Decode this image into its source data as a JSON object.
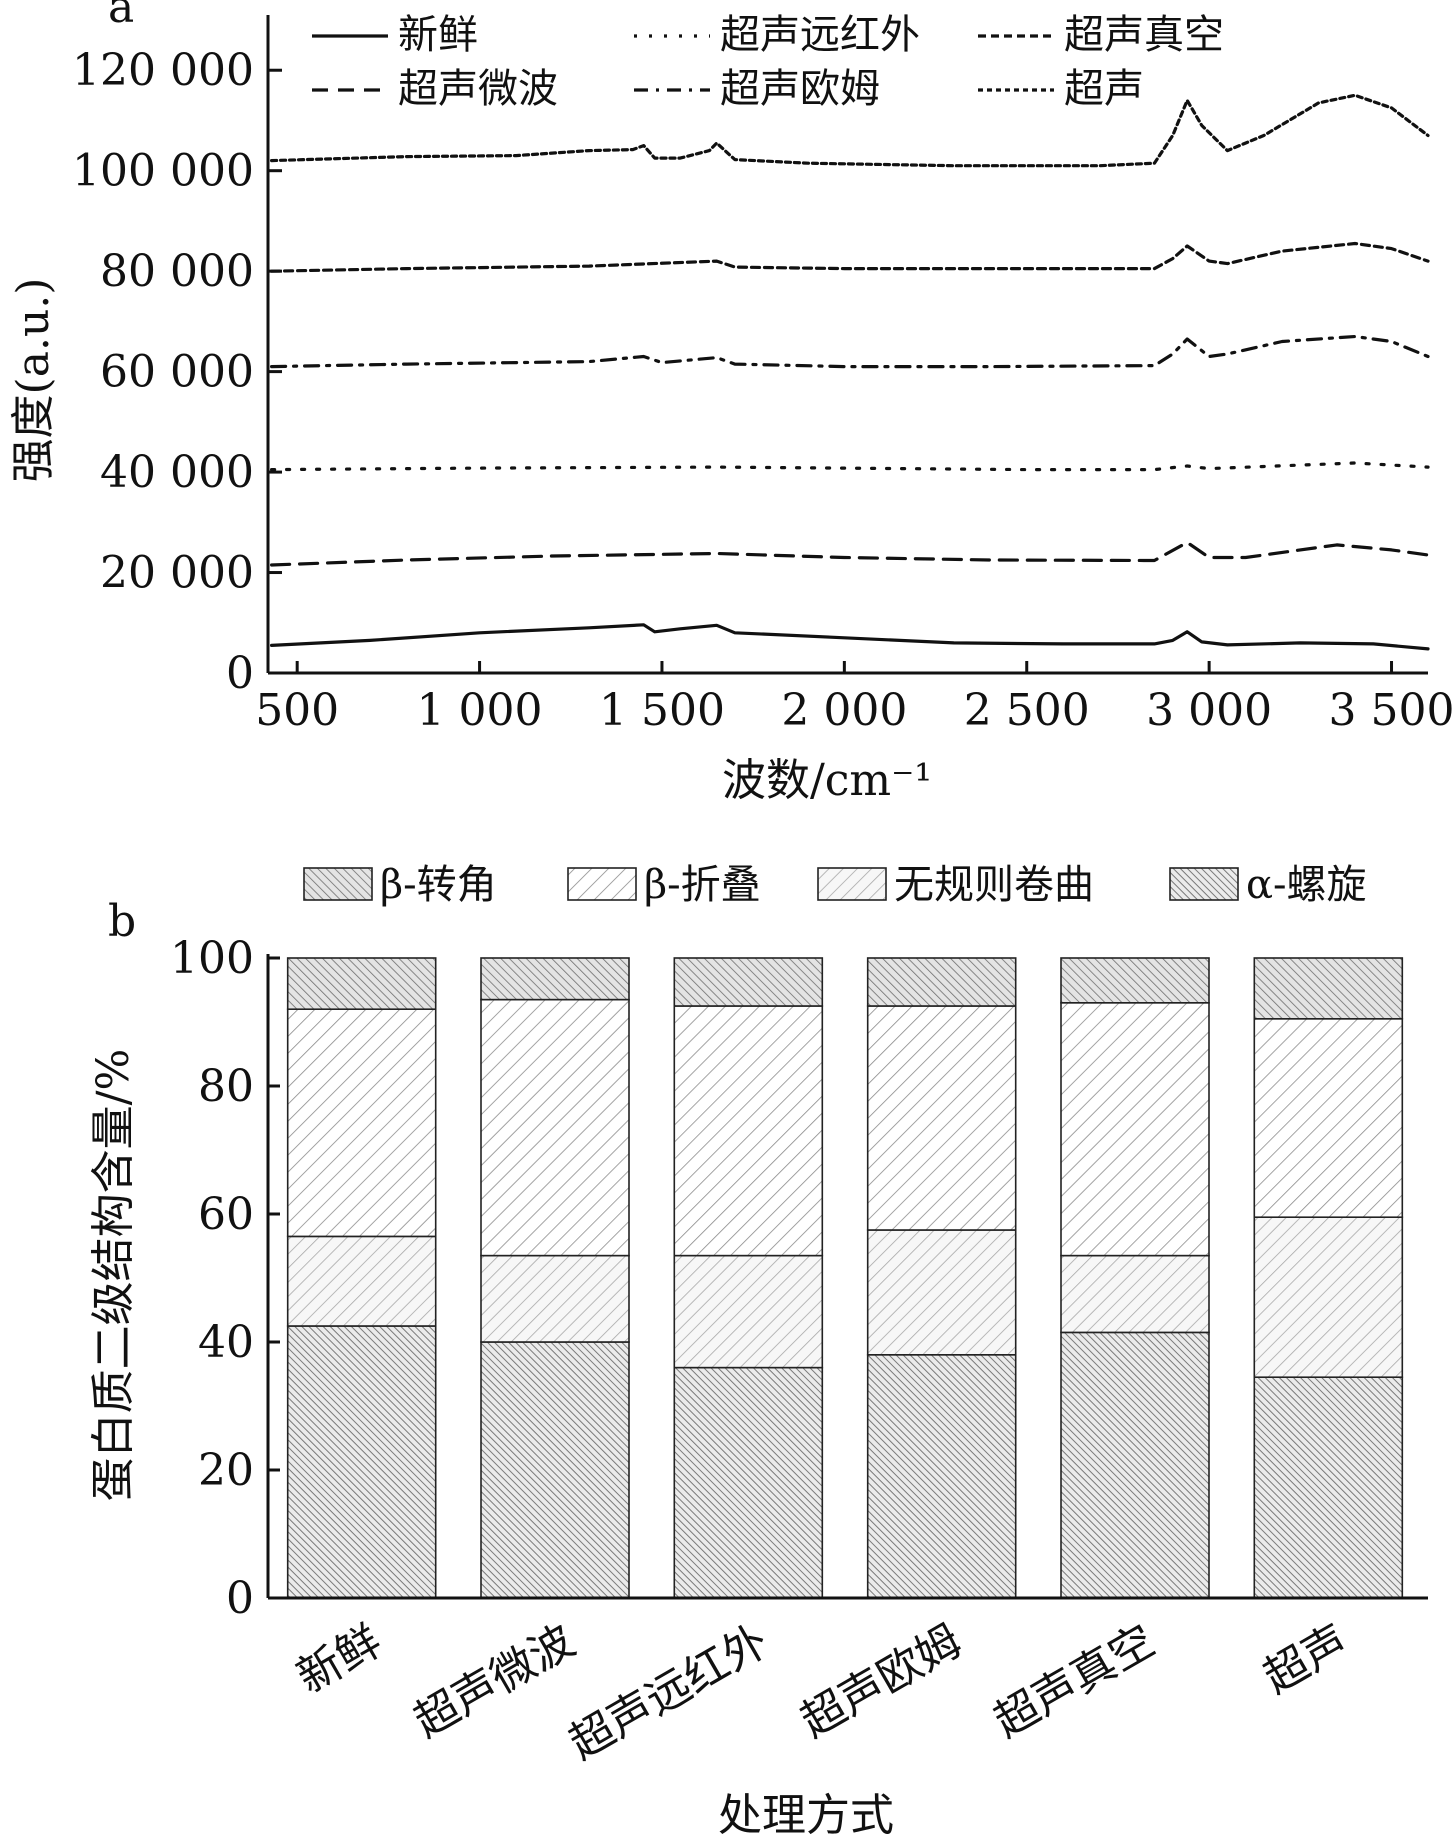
{
  "chart_data": [
    {
      "panel": "a",
      "type": "line",
      "xlabel": "波数/cm⁻¹",
      "ylabel": "强度(a.u.)",
      "xlim": [
        420,
        3600
      ],
      "ylim": [
        0,
        130000
      ],
      "xticks": [
        500,
        1000,
        1500,
        2000,
        2500,
        3000,
        3500
      ],
      "xtick_labels": [
        "500",
        "1 000",
        "1 500",
        "2 000",
        "2 500",
        "3 000",
        "3 500"
      ],
      "yticks": [
        0,
        20000,
        40000,
        60000,
        80000,
        100000,
        120000
      ],
      "ytick_labels": [
        "0",
        "20 000",
        "40 000",
        "60 000",
        "80 000",
        "100 000",
        "120 000"
      ],
      "legend_position": "top",
      "series": [
        {
          "name": "新鲜",
          "style": "solid",
          "points": [
            [
              430,
              5500
            ],
            [
              700,
              6500
            ],
            [
              1000,
              8000
            ],
            [
              1300,
              9000
            ],
            [
              1450,
              9600
            ],
            [
              1480,
              8200
            ],
            [
              1550,
              8800
            ],
            [
              1650,
              9500
            ],
            [
              1700,
              8000
            ],
            [
              2000,
              7000
            ],
            [
              2300,
              6000
            ],
            [
              2600,
              5800
            ],
            [
              2850,
              5800
            ],
            [
              2900,
              6500
            ],
            [
              2940,
              8200
            ],
            [
              2980,
              6200
            ],
            [
              3050,
              5600
            ],
            [
              3250,
              6000
            ],
            [
              3450,
              5800
            ],
            [
              3600,
              4800
            ]
          ]
        },
        {
          "name": "超声微波",
          "style": "dashed",
          "points": [
            [
              430,
              21500
            ],
            [
              800,
              22500
            ],
            [
              1200,
              23300
            ],
            [
              1650,
              23800
            ],
            [
              2000,
              23000
            ],
            [
              2400,
              22500
            ],
            [
              2850,
              22400
            ],
            [
              2940,
              26000
            ],
            [
              3000,
              23000
            ],
            [
              3100,
              23000
            ],
            [
              3350,
              25500
            ],
            [
              3500,
              24500
            ],
            [
              3600,
              23500
            ]
          ]
        },
        {
          "name": "超声远红外",
          "style": "dotted",
          "points": [
            [
              430,
              40500
            ],
            [
              1000,
              40800
            ],
            [
              1650,
              41000
            ],
            [
              2500,
              40500
            ],
            [
              2850,
              40500
            ],
            [
              2940,
              41200
            ],
            [
              3000,
              40700
            ],
            [
              3400,
              41800
            ],
            [
              3600,
              41000
            ]
          ]
        },
        {
          "name": "超声欧姆",
          "style": "dashdot",
          "points": [
            [
              430,
              61000
            ],
            [
              800,
              61500
            ],
            [
              1300,
              62000
            ],
            [
              1450,
              63000
            ],
            [
              1500,
              61800
            ],
            [
              1650,
              62800
            ],
            [
              1700,
              61500
            ],
            [
              2000,
              61000
            ],
            [
              2400,
              61000
            ],
            [
              2850,
              61200
            ],
            [
              2900,
              63500
            ],
            [
              2940,
              66500
            ],
            [
              3000,
              63000
            ],
            [
              3050,
              63500
            ],
            [
              3200,
              66000
            ],
            [
              3400,
              67000
            ],
            [
              3500,
              66000
            ],
            [
              3600,
              63000
            ]
          ]
        },
        {
          "name": "超声真空",
          "style": "shortdash",
          "points": [
            [
              430,
              80000
            ],
            [
              800,
              80500
            ],
            [
              1300,
              81000
            ],
            [
              1650,
              82000
            ],
            [
              1700,
              80800
            ],
            [
              2000,
              80500
            ],
            [
              2500,
              80500
            ],
            [
              2850,
              80500
            ],
            [
              2900,
              82500
            ],
            [
              2940,
              85000
            ],
            [
              3000,
              82000
            ],
            [
              3050,
              81500
            ],
            [
              3200,
              84000
            ],
            [
              3400,
              85500
            ],
            [
              3500,
              84500
            ],
            [
              3600,
              82000
            ]
          ]
        },
        {
          "name": "超声",
          "style": "finedash",
          "points": [
            [
              430,
              102000
            ],
            [
              800,
              102800
            ],
            [
              1100,
              103000
            ],
            [
              1300,
              104000
            ],
            [
              1420,
              104200
            ],
            [
              1450,
              105000
            ],
            [
              1480,
              102500
            ],
            [
              1550,
              102500
            ],
            [
              1630,
              104000
            ],
            [
              1650,
              105500
            ],
            [
              1700,
              102200
            ],
            [
              1900,
              101500
            ],
            [
              2300,
              101000
            ],
            [
              2700,
              101000
            ],
            [
              2850,
              101500
            ],
            [
              2900,
              107000
            ],
            [
              2940,
              114000
            ],
            [
              2980,
              109000
            ],
            [
              3050,
              104000
            ],
            [
              3150,
              107000
            ],
            [
              3300,
              113500
            ],
            [
              3400,
              115000
            ],
            [
              3500,
              112500
            ],
            [
              3600,
              107000
            ]
          ]
        }
      ]
    },
    {
      "panel": "b",
      "type": "bar",
      "stacked": true,
      "xlabel": "处理方式",
      "ylabel": "蛋白质二级结构含量/%",
      "ylim": [
        0,
        100
      ],
      "yticks": [
        0,
        20,
        40,
        60,
        80,
        100
      ],
      "legend_position": "top",
      "categories": [
        "新鲜",
        "超声微波",
        "超声远红外",
        "超声欧姆",
        "超声真空",
        "超声"
      ],
      "series": [
        {
          "name": "α-螺旋",
          "pattern": "dense",
          "values": [
            42.5,
            40.0,
            36.0,
            38.0,
            41.5,
            34.5
          ]
        },
        {
          "name": "无规则卷曲",
          "pattern": "light",
          "values": [
            14.0,
            13.5,
            17.5,
            19.5,
            12.0,
            25.0
          ]
        },
        {
          "name": "β-折叠",
          "pattern": "diag",
          "values": [
            35.5,
            40.0,
            39.0,
            35.0,
            39.5,
            31.0
          ]
        },
        {
          "name": "β-转角",
          "pattern": "cross",
          "values": [
            8.0,
            6.5,
            7.5,
            7.5,
            7.0,
            9.5
          ]
        }
      ],
      "legend_order": [
        "β-转角",
        "β-折叠",
        "无规则卷曲",
        "α-螺旋"
      ]
    }
  ]
}
